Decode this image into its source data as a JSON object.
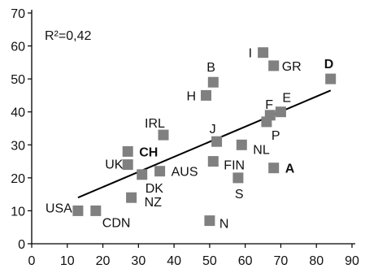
{
  "chart_data": {
    "type": "scatter",
    "annotation": "R²=0,42",
    "xlim": [
      0,
      90
    ],
    "ylim": [
      0,
      70
    ],
    "x_ticks": [
      0,
      10,
      20,
      30,
      40,
      50,
      60,
      70,
      80,
      90
    ],
    "y_ticks": [
      0,
      10,
      20,
      30,
      40,
      50,
      60,
      70
    ],
    "grid": false,
    "marker_color": "#808080",
    "trend_color": "#000000",
    "points": [
      {
        "label": "USA",
        "x": 13,
        "y": 10,
        "bold": false
      },
      {
        "label": "CDN",
        "x": 18,
        "y": 10,
        "bold": false
      },
      {
        "label": "NZ",
        "x": 28,
        "y": 14,
        "bold": false
      },
      {
        "label": "DK",
        "x": 31,
        "y": 21,
        "bold": false
      },
      {
        "label": "UK",
        "x": 27,
        "y": 24,
        "bold": false
      },
      {
        "label": "CH",
        "x": 27,
        "y": 28,
        "bold": true
      },
      {
        "label": "AUS",
        "x": 36,
        "y": 22,
        "bold": false
      },
      {
        "label": "IRL",
        "x": 37,
        "y": 33,
        "bold": false
      },
      {
        "label": "N",
        "x": 50,
        "y": 7,
        "bold": false
      },
      {
        "label": "FIN",
        "x": 51,
        "y": 25,
        "bold": false
      },
      {
        "label": "J",
        "x": 52,
        "y": 31,
        "bold": false
      },
      {
        "label": "S",
        "x": 58,
        "y": 20,
        "bold": false
      },
      {
        "label": "NL",
        "x": 59,
        "y": 30,
        "bold": false
      },
      {
        "label": "H",
        "x": 49,
        "y": 45,
        "bold": false
      },
      {
        "label": "B",
        "x": 51,
        "y": 49,
        "bold": false
      },
      {
        "label": "P",
        "x": 66,
        "y": 37,
        "bold": false
      },
      {
        "label": "F",
        "x": 67,
        "y": 39,
        "bold": false
      },
      {
        "label": "E",
        "x": 70,
        "y": 40,
        "bold": false
      },
      {
        "label": "A",
        "x": 68,
        "y": 23,
        "bold": true
      },
      {
        "label": "I",
        "x": 65,
        "y": 58,
        "bold": false
      },
      {
        "label": "GR",
        "x": 68,
        "y": 54,
        "bold": false
      },
      {
        "label": "D",
        "x": 84,
        "y": 50,
        "bold": true
      }
    ],
    "trendline": {
      "x": [
        13,
        84
      ],
      "y": [
        14,
        46.5
      ]
    }
  }
}
